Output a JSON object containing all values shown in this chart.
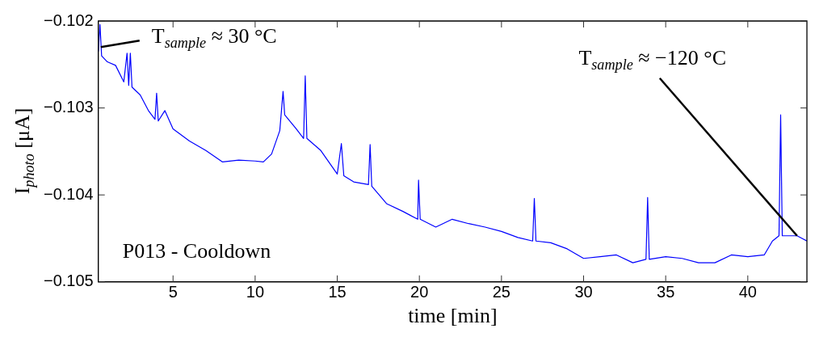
{
  "chart_data": {
    "type": "line",
    "xlabel": "time [min]",
    "ylabel": "I$_{photo}$ [μA]",
    "xlim": [
      0.45,
      43.6
    ],
    "xticks": [
      5,
      10,
      15,
      20,
      25,
      30,
      35,
      40
    ],
    "ylim": [
      -0.105,
      -0.102
    ],
    "yticks": [
      {
        "value": -0.105,
        "label": "−0.105"
      },
      {
        "value": -0.104,
        "label": "−0.104"
      },
      {
        "value": -0.103,
        "label": "−0.103"
      },
      {
        "value": -0.102,
        "label": "−0.102"
      }
    ],
    "grid": false,
    "legend": false,
    "marker": "none",
    "line_style": "solid",
    "annotations": [
      {
        "text": "T$_{sample}$ ≈ 30 °C",
        "x": 0.6,
        "y": -0.1023
      },
      {
        "text": "T$_{sample}$ ≈ −120 °C",
        "x": 43,
        "y": -0.10447
      },
      "P013 - Cooldown"
    ],
    "series": [
      {
        "color": "#0000ff",
        "x": [
          0.45,
          0.55,
          0.65,
          1,
          1.5,
          2,
          2.2,
          2.3,
          2.4,
          2.5,
          3,
          3.5,
          3.9,
          4,
          4.1,
          4.5,
          5,
          6,
          7,
          8,
          9,
          10,
          10.5,
          11,
          11.5,
          11.7,
          11.8,
          12.5,
          12.95,
          13.05,
          13.15,
          14,
          15,
          15.25,
          15.4,
          16,
          16.9,
          17,
          17.1,
          18,
          19,
          19.9,
          19.95,
          20.05,
          21,
          22,
          23,
          24,
          25,
          26,
          26.9,
          27,
          27.1,
          28,
          29,
          30,
          31,
          32,
          33,
          33.8,
          33.9,
          34,
          35,
          36,
          37,
          38,
          39,
          40,
          41,
          41.5,
          41.9,
          42,
          42.1,
          43,
          43.6
        ],
        "values": [
          -0.10235,
          -0.10204,
          -0.1024,
          -0.10247,
          -0.10251,
          -0.1027,
          -0.10237,
          -0.10274,
          -0.10237,
          -0.10276,
          -0.10285,
          -0.10303,
          -0.10313,
          -0.10283,
          -0.10315,
          -0.10303,
          -0.10324,
          -0.10338,
          -0.10349,
          -0.10362,
          -0.1036,
          -0.10361,
          -0.10362,
          -0.10353,
          -0.10326,
          -0.10281,
          -0.10308,
          -0.10324,
          -0.10335,
          -0.10263,
          -0.10335,
          -0.10349,
          -0.10376,
          -0.10341,
          -0.10378,
          -0.10385,
          -0.10388,
          -0.10342,
          -0.1039,
          -0.1041,
          -0.10419,
          -0.10428,
          -0.10383,
          -0.10428,
          -0.10437,
          -0.10428,
          -0.10433,
          -0.10437,
          -0.10442,
          -0.10449,
          -0.10453,
          -0.10404,
          -0.10453,
          -0.10455,
          -0.10462,
          -0.10473,
          -0.10471,
          -0.10469,
          -0.10478,
          -0.10474,
          -0.10403,
          -0.10474,
          -0.10471,
          -0.10473,
          -0.10478,
          -0.10478,
          -0.10469,
          -0.10471,
          -0.10469,
          -0.10453,
          -0.10447,
          -0.10308,
          -0.10447,
          -0.10447,
          -0.10453
        ]
      }
    ]
  }
}
